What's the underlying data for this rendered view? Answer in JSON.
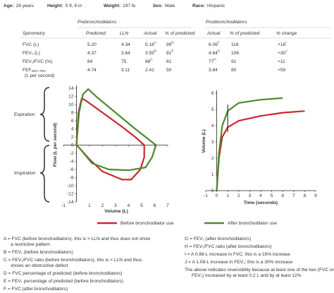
{
  "header": [
    {
      "label": "Age:",
      "value": "26 years"
    },
    {
      "label": "Height:",
      "value": "5 ft, 8 in"
    },
    {
      "label": "Weight:",
      "value": "197 lb"
    },
    {
      "label": "Sex:",
      "value": "Male"
    },
    {
      "label": "Race:",
      "value": "Hispanic"
    }
  ],
  "table": {
    "groups": [
      "Prebronchodilators",
      "Postbronchodilators"
    ],
    "columns": [
      "Spirometry",
      "Predicted",
      "LLN",
      "Actual",
      "% of predicted",
      "Actual",
      "% of predicted",
      "% change"
    ],
    "rows": [
      [
        {
          "text": "FVC (L)"
        },
        {
          "text": "5.20"
        },
        {
          "text": "4.34"
        },
        {
          "text": "5.18",
          "sup": "A"
        },
        {
          "text": "99",
          "sup": "D"
        },
        {
          "text": "6.06",
          "sup": "F"
        },
        {
          "text": "116"
        },
        {
          "text": "+16",
          "sup": "I"
        }
      ],
      [
        {
          "text": "FEV₁ (L)"
        },
        {
          "text": "4.37"
        },
        {
          "text": "3.64"
        },
        {
          "text": "3.55",
          "sup": "B"
        },
        {
          "text": "81",
          "sup": "E"
        },
        {
          "text": "4.64",
          "sup": "G"
        },
        {
          "text": "106"
        },
        {
          "text": "+30",
          "sup": "J"
        }
      ],
      [
        {
          "text": "FEV₁/FVC (%)"
        },
        {
          "text": "84"
        },
        {
          "text": "75"
        },
        {
          "text": "68",
          "sup": "C"
        },
        {
          "text": "81"
        },
        {
          "text": "77",
          "sup": "H"
        },
        {
          "text": "91"
        },
        {
          "text": "+11"
        }
      ],
      [
        {
          "text": "FEF",
          "sub": "25%–75%",
          "line2": "(L per second)"
        },
        {
          "text": "4.74"
        },
        {
          "text": "3.11"
        },
        {
          "text": "2.41"
        },
        {
          "text": "50"
        },
        {
          "text": "3.84"
        },
        {
          "text": "80"
        },
        {
          "text": "+59"
        }
      ]
    ]
  },
  "annotations": [
    "Expiration",
    "Inspiration"
  ],
  "chart_data": [
    {
      "type": "line",
      "xlabel": "Volume (L)",
      "ylabel": "Flow (L per second)",
      "xlim": [
        -1,
        7
      ],
      "ylim": [
        -14,
        14
      ],
      "xticks": [
        -1,
        1,
        2,
        3,
        4,
        5,
        6,
        7
      ],
      "yticks": [
        14,
        12,
        10,
        8,
        6,
        4,
        2,
        0,
        -2,
        -4,
        -6,
        -8,
        -10,
        -12,
        -14
      ],
      "series": [
        {
          "name": "Before bronchodilator use",
          "color": "#c8282e",
          "x": [
            0,
            0.15,
            0.4,
            0.7,
            2,
            3.5,
            4.5,
            5.2,
            5.2,
            4.9,
            4.2,
            3.5,
            2,
            1,
            0.3,
            0
          ],
          "values": [
            0,
            8,
            11.5,
            11,
            8,
            4.5,
            2,
            0,
            -3,
            -6,
            -8.5,
            -8.5,
            -6.5,
            -3.5,
            -1,
            0
          ]
        },
        {
          "name": "After bronchodilator use",
          "color": "#4b8b2b",
          "x": [
            0,
            0.2,
            0.5,
            0.9,
            1.5,
            3,
            4.5,
            5.5,
            6.1,
            5.8,
            5.3,
            4,
            2.5,
            1.2,
            0.3,
            0
          ],
          "values": [
            0,
            8,
            12.5,
            13.8,
            12,
            8,
            4,
            1.5,
            0,
            -3,
            -5.5,
            -6.2,
            -6,
            -4.5,
            -1,
            0
          ]
        }
      ]
    },
    {
      "type": "line",
      "xlabel": "Time (seconds)",
      "ylabel": "Volume (L)",
      "xlim": [
        -1,
        9
      ],
      "ylim": [
        0,
        6
      ],
      "xticks": [
        -1,
        0,
        1,
        2,
        3,
        4,
        5,
        6,
        7,
        8,
        9
      ],
      "yticks": [
        0,
        1,
        2,
        3,
        4,
        5,
        6
      ],
      "series": [
        {
          "name": "Before bronchodilator use",
          "color": "#c8282e",
          "x": [
            0,
            0.2,
            0.5,
            1,
            2,
            4,
            6,
            8
          ],
          "values": [
            0,
            2,
            3.3,
            3.9,
            4.3,
            4.6,
            4.8,
            4.9
          ]
        },
        {
          "name": "After bronchodilator use",
          "color": "#4b8b2b",
          "x": [
            0,
            0.2,
            0.5,
            1,
            2,
            4,
            6
          ],
          "values": [
            0,
            2.3,
            4,
            4.9,
            5.4,
            5.6,
            5.7
          ]
        }
      ]
    }
  ],
  "notes": {
    "left": [
      [
        "A = FVC (before bronchodilators), this is > LLN and thus does not show",
        "a restrictive pattern"
      ],
      [
        "B = FEV₁ (before bronchodilators)"
      ],
      [
        "C = FEV₁/FVC ratio (before bronchodilators), this is < LLN and thus",
        "shows an obstructive defect"
      ],
      [
        "D = FVC percentage of predicted (before bronchodilators)"
      ],
      [
        "E = FEV₁ percentage of predicted (before bronchodilators)"
      ],
      [
        "F = FVC (after bronchodilators)"
      ]
    ],
    "right": [
      [
        "G = FEV₁ (after bronchodilators)"
      ],
      [
        "H = FEV₁/FVC ratio (after bronchodilators)"
      ],
      [
        "I = A 0.88-L increase in FVC; this is a 16% increase"
      ],
      [
        "J = A 1.09-L increase in FEV₁; this is a 30% increase"
      ],
      [
        "The above indicates reversibility because at least one of the two (FVC or",
        "FEV₁) increased by at least 0.2 L and by at least 12%"
      ]
    ]
  }
}
